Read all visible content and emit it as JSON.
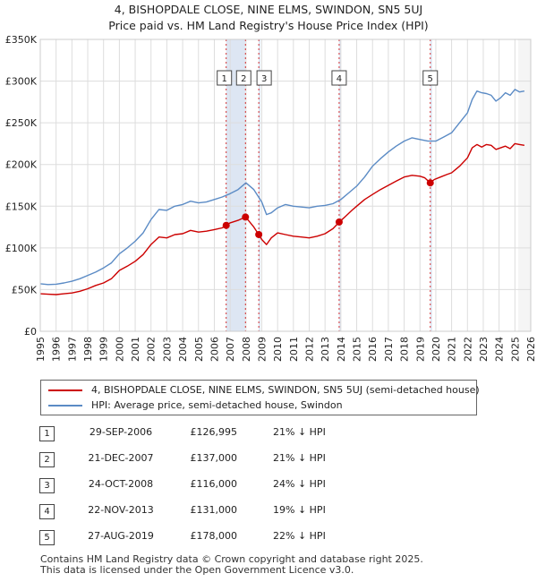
{
  "title_line1": "4, BISHOPDALE CLOSE, NINE ELMS, SWINDON, SN5 5UJ",
  "title_line2": "Price paid vs. HM Land Registry's House Price Index (HPI)",
  "colors": {
    "property": "#cc0000",
    "hpi": "#5b8bc5",
    "highlight": "#dde6f3",
    "marker_line": "#cc0000",
    "grid": "#dddddd"
  },
  "chart_data": {
    "type": "line",
    "title": "Price paid vs. HM Land Registry's House Price Index (HPI)",
    "xlim": [
      1995,
      2026
    ],
    "ylim": [
      0,
      350000
    ],
    "y_ticks": [
      0,
      50000,
      100000,
      150000,
      200000,
      250000,
      300000,
      350000
    ],
    "y_tick_labels": [
      "£0",
      "£50K",
      "£100K",
      "£150K",
      "£200K",
      "£250K",
      "£300K",
      "£350K"
    ],
    "x_ticks": [
      1995,
      1996,
      1997,
      1998,
      1999,
      2000,
      2001,
      2002,
      2003,
      2004,
      2005,
      2006,
      2007,
      2008,
      2009,
      2010,
      2011,
      2012,
      2013,
      2014,
      2015,
      2016,
      2017,
      2018,
      2019,
      2020,
      2021,
      2022,
      2023,
      2024,
      2025,
      2026
    ],
    "x_tick_labels": [
      "1995",
      "1996",
      "1997",
      "1998",
      "1999",
      "2000",
      "2001",
      "2002",
      "2003",
      "2004",
      "2005",
      "2006",
      "2007",
      "2008",
      "2009",
      "2010",
      "2011",
      "2012",
      "2013",
      "2014",
      "2015",
      "2016",
      "2017",
      "2018",
      "2019",
      "2020",
      "2021",
      "2022",
      "2023",
      "2024",
      "2025",
      "2026"
    ],
    "highlight_ranges": [
      [
        2006.75,
        2007.95
      ],
      [
        2008.8,
        2008.85
      ],
      [
        2013.88,
        2013.92
      ],
      [
        2019.65,
        2019.7
      ]
    ],
    "forecast_start": 2025.2,
    "series": [
      {
        "name": "4, BISHOPDALE CLOSE, NINE ELMS, SWINDON, SN5 5UJ (semi-detached house)",
        "x": [
          1995.0,
          1995.5,
          1996.0,
          1996.5,
          1997.0,
          1997.5,
          1998.0,
          1998.5,
          1999.0,
          1999.5,
          2000.0,
          2000.5,
          2001.0,
          2001.5,
          2002.0,
          2002.5,
          2003.0,
          2003.5,
          2004.0,
          2004.5,
          2005.0,
          2005.5,
          2006.0,
          2006.5,
          2006.75,
          2007.0,
          2007.5,
          2007.97,
          2008.2,
          2008.5,
          2008.81,
          2009.0,
          2009.3,
          2009.6,
          2010.0,
          2010.5,
          2011.0,
          2011.5,
          2012.0,
          2012.5,
          2013.0,
          2013.5,
          2013.9,
          2014.3,
          2014.7,
          2015.0,
          2015.5,
          2016.0,
          2016.5,
          2017.0,
          2017.5,
          2018.0,
          2018.5,
          2019.0,
          2019.3,
          2019.65,
          2019.9,
          2020.3,
          2020.7,
          2021.0,
          2021.5,
          2022.0,
          2022.3,
          2022.6,
          2022.9,
          2023.2,
          2023.5,
          2023.8,
          2024.1,
          2024.4,
          2024.7,
          2025.0,
          2025.3,
          2025.6
        ],
        "values": [
          45000,
          44500,
          44000,
          45000,
          46000,
          48000,
          51000,
          55000,
          58000,
          63000,
          73000,
          78000,
          84000,
          92000,
          104000,
          113000,
          112000,
          116000,
          117000,
          121000,
          119000,
          120000,
          122000,
          124000,
          126995,
          130000,
          133000,
          137000,
          132000,
          125000,
          116000,
          110000,
          104000,
          112000,
          118000,
          116000,
          114000,
          113000,
          112000,
          114000,
          117000,
          123000,
          131000,
          138000,
          145000,
          150000,
          158000,
          164000,
          170000,
          175000,
          180000,
          185000,
          187000,
          186000,
          184000,
          178000,
          182000,
          185000,
          188000,
          190000,
          198000,
          208000,
          220000,
          224000,
          221000,
          224000,
          223000,
          218000,
          220000,
          222000,
          219000,
          225000,
          224000,
          223000
        ]
      },
      {
        "name": "HPI: Average price, semi-detached house, Swindon",
        "x": [
          1995.0,
          1995.5,
          1996.0,
          1996.5,
          1997.0,
          1997.5,
          1998.0,
          1998.5,
          1999.0,
          1999.5,
          2000.0,
          2000.5,
          2001.0,
          2001.5,
          2002.0,
          2002.5,
          2003.0,
          2003.5,
          2004.0,
          2004.5,
          2005.0,
          2005.5,
          2006.0,
          2006.5,
          2007.0,
          2007.5,
          2008.0,
          2008.5,
          2009.0,
          2009.3,
          2009.6,
          2010.0,
          2010.5,
          2011.0,
          2011.5,
          2012.0,
          2012.5,
          2013.0,
          2013.5,
          2014.0,
          2014.5,
          2015.0,
          2015.5,
          2016.0,
          2016.5,
          2017.0,
          2017.5,
          2018.0,
          2018.5,
          2019.0,
          2019.5,
          2020.0,
          2020.5,
          2021.0,
          2021.5,
          2022.0,
          2022.3,
          2022.6,
          2022.9,
          2023.2,
          2023.5,
          2023.8,
          2024.1,
          2024.4,
          2024.7,
          2025.0,
          2025.3,
          2025.6
        ],
        "values": [
          57000,
          56000,
          56500,
          58000,
          60000,
          63000,
          67000,
          71000,
          76000,
          82000,
          93000,
          100000,
          108000,
          118000,
          134000,
          146000,
          145000,
          150000,
          152000,
          156000,
          154000,
          155000,
          158000,
          161000,
          165000,
          170000,
          178000,
          170000,
          155000,
          140000,
          142000,
          148000,
          152000,
          150000,
          149000,
          148000,
          150000,
          151000,
          153000,
          158000,
          166000,
          174000,
          185000,
          198000,
          207000,
          215000,
          222000,
          228000,
          232000,
          230000,
          228000,
          228000,
          233000,
          238000,
          250000,
          262000,
          278000,
          288000,
          286000,
          285000,
          283000,
          276000,
          280000,
          286000,
          283000,
          290000,
          287000,
          288000
        ]
      }
    ],
    "sales": [
      {
        "label": "1",
        "x": 2006.75,
        "value": 126995
      },
      {
        "label": "2",
        "x": 2007.97,
        "value": 137000
      },
      {
        "label": "3",
        "x": 2008.81,
        "value": 116000
      },
      {
        "label": "4",
        "x": 2013.89,
        "value": 131000
      },
      {
        "label": "5",
        "x": 2019.65,
        "value": 178000
      }
    ]
  },
  "legend": {
    "property_label": "4, BISHOPDALE CLOSE, NINE ELMS, SWINDON, SN5 5UJ (semi-detached house)",
    "hpi_label": "HPI: Average price, semi-detached house, Swindon"
  },
  "sales_table": [
    {
      "num": "1",
      "date": "29-SEP-2006",
      "price": "£126,995",
      "hpi": "21% ↓ HPI"
    },
    {
      "num": "2",
      "date": "21-DEC-2007",
      "price": "£137,000",
      "hpi": "21% ↓ HPI"
    },
    {
      "num": "3",
      "date": "24-OCT-2008",
      "price": "£116,000",
      "hpi": "24% ↓ HPI"
    },
    {
      "num": "4",
      "date": "22-NOV-2013",
      "price": "£131,000",
      "hpi": "19% ↓ HPI"
    },
    {
      "num": "5",
      "date": "27-AUG-2019",
      "price": "£178,000",
      "hpi": "22% ↓ HPI"
    }
  ],
  "footer_line1": "Contains HM Land Registry data © Crown copyright and database right 2025.",
  "footer_line2": "This data is licensed under the Open Government Licence v3.0."
}
